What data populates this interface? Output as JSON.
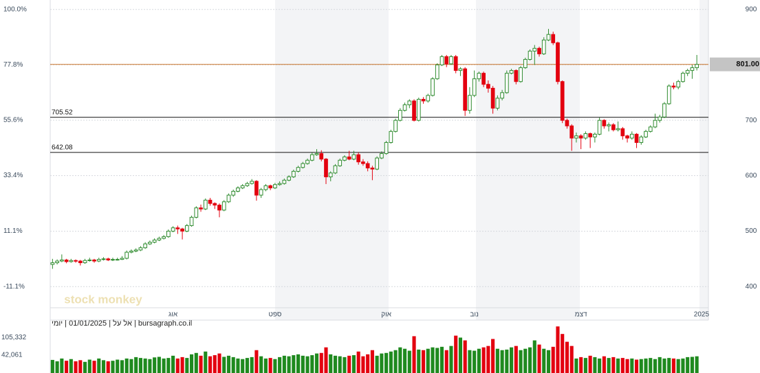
{
  "chart_data": {
    "type": "candlestick",
    "watermark": "stock monkey",
    "footer": "bursagraph.co.il | אל על | 01/01/2025 | יומי",
    "xlim": [
      -0.5,
      141.5
    ],
    "xticks": [
      {
        "value": 26,
        "label": "אוג"
      },
      {
        "value": 48,
        "label": "ספט"
      },
      {
        "value": 72,
        "label": "אוק"
      },
      {
        "value": 91,
        "label": "נוב"
      },
      {
        "value": 114,
        "label": "דצמ"
      },
      {
        "value": 140,
        "label": "2025"
      }
    ],
    "ylim": [
      363,
      911
    ],
    "yticks": [
      400,
      500,
      600,
      700,
      900
    ],
    "y2lim": [
      -19.3,
      102.4
    ],
    "y2ticks": [
      {
        "value": -11.1,
        "label": "-11.1%"
      },
      {
        "value": 11.1,
        "label": "11.1%"
      },
      {
        "value": 33.4,
        "label": "33.4%"
      },
      {
        "value": 55.6,
        "label": "55.6%"
      },
      {
        "value": 77.8,
        "label": "77.8%"
      },
      {
        "value": 100,
        "label": "100.0%"
      }
    ],
    "grid": true,
    "levels": [
      705.52,
      642.08
    ],
    "last_price": {
      "value": 801,
      "label": "801.00"
    },
    "up_color": "#2e8b2e",
    "down_color": "#e3000f",
    "ohlc": [
      [
        440,
        450,
        432,
        443
      ],
      [
        443,
        449,
        440,
        446
      ],
      [
        446,
        458,
        444,
        448
      ],
      [
        448,
        450,
        442,
        445
      ],
      [
        445,
        450,
        443,
        447
      ],
      [
        447,
        449,
        443,
        446
      ],
      [
        446,
        448,
        438,
        443
      ],
      [
        443,
        450,
        441,
        447
      ],
      [
        447,
        452,
        445,
        448
      ],
      [
        448,
        450,
        443,
        446
      ],
      [
        446,
        452,
        444,
        449
      ],
      [
        449,
        453,
        447,
        450
      ],
      [
        450,
        452,
        446,
        448
      ],
      [
        448,
        452,
        446,
        449
      ],
      [
        449,
        452,
        447,
        449
      ],
      [
        449,
        455,
        448,
        451
      ],
      [
        451,
        465,
        449,
        462
      ],
      [
        462,
        467,
        460,
        464
      ],
      [
        464,
        469,
        462,
        466
      ],
      [
        466,
        473,
        464,
        470
      ],
      [
        470,
        480,
        468,
        477
      ],
      [
        477,
        483,
        475,
        480
      ],
      [
        480,
        487,
        478,
        484
      ],
      [
        484,
        490,
        482,
        487
      ],
      [
        487,
        493,
        485,
        490
      ],
      [
        490,
        503,
        488,
        500
      ],
      [
        500,
        509,
        498,
        506
      ],
      [
        506,
        510,
        495,
        504
      ],
      [
        504,
        506,
        485,
        500
      ],
      [
        500,
        513,
        498,
        510
      ],
      [
        510,
        528,
        508,
        525
      ],
      [
        525,
        545,
        523,
        542
      ],
      [
        542,
        548,
        535,
        540
      ],
      [
        540,
        559,
        538,
        556
      ],
      [
        556,
        560,
        546,
        550
      ],
      [
        550,
        552,
        540,
        547
      ],
      [
        547,
        550,
        525,
        538
      ],
      [
        538,
        556,
        536,
        553
      ],
      [
        553,
        568,
        551,
        565
      ],
      [
        565,
        575,
        562,
        572
      ],
      [
        572,
        581,
        570,
        578
      ],
      [
        578,
        585,
        576,
        582
      ],
      [
        582,
        589,
        580,
        586
      ],
      [
        586,
        594,
        584,
        590
      ],
      [
        590,
        592,
        555,
        565
      ],
      [
        565,
        578,
        560,
        575
      ],
      [
        575,
        585,
        572,
        582
      ],
      [
        582,
        584,
        574,
        578
      ],
      [
        578,
        587,
        576,
        584
      ],
      [
        584,
        590,
        582,
        586
      ],
      [
        586,
        595,
        584,
        592
      ],
      [
        592,
        601,
        590,
        598
      ],
      [
        598,
        611,
        596,
        608
      ],
      [
        608,
        618,
        606,
        615
      ],
      [
        615,
        625,
        613,
        622
      ],
      [
        622,
        631,
        620,
        628
      ],
      [
        628,
        642,
        626,
        638
      ],
      [
        638,
        648,
        636,
        640
      ],
      [
        640,
        646,
        626,
        630
      ],
      [
        630,
        632,
        585,
        598
      ],
      [
        598,
        608,
        590,
        605
      ],
      [
        605,
        621,
        603,
        618
      ],
      [
        618,
        631,
        616,
        628
      ],
      [
        628,
        637,
        626,
        634
      ],
      [
        634,
        645,
        628,
        630
      ],
      [
        630,
        645,
        628,
        638
      ],
      [
        638,
        642,
        620,
        625
      ],
      [
        625,
        630,
        618,
        622
      ],
      [
        622,
        626,
        608,
        614
      ],
      [
        614,
        618,
        592,
        612
      ],
      [
        612,
        635,
        610,
        632
      ],
      [
        632,
        644,
        630,
        640
      ],
      [
        640,
        663,
        638,
        660
      ],
      [
        660,
        683,
        658,
        680
      ],
      [
        680,
        703,
        678,
        700
      ],
      [
        700,
        722,
        698,
        718
      ],
      [
        718,
        732,
        716,
        728
      ],
      [
        728,
        738,
        722,
        735
      ],
      [
        735,
        738,
        698,
        700
      ],
      [
        700,
        741,
        698,
        738
      ],
      [
        738,
        742,
        730,
        735
      ],
      [
        735,
        748,
        732,
        745
      ],
      [
        745,
        778,
        743,
        775
      ],
      [
        775,
        803,
        773,
        800
      ],
      [
        800,
        818,
        798,
        815
      ],
      [
        815,
        818,
        796,
        802
      ],
      [
        802,
        818,
        800,
        815
      ],
      [
        815,
        818,
        785,
        790
      ],
      [
        790,
        796,
        780,
        793
      ],
      [
        793,
        796,
        708,
        718
      ],
      [
        718,
        760,
        712,
        745
      ],
      [
        745,
        790,
        742,
        775
      ],
      [
        775,
        788,
        770,
        785
      ],
      [
        785,
        788,
        760,
        765
      ],
      [
        765,
        772,
        750,
        758
      ],
      [
        758,
        762,
        712,
        722
      ],
      [
        722,
        745,
        718,
        740
      ],
      [
        740,
        755,
        736,
        750
      ],
      [
        750,
        790,
        748,
        785
      ],
      [
        785,
        793,
        783,
        790
      ],
      [
        790,
        792,
        765,
        770
      ],
      [
        770,
        798,
        768,
        795
      ],
      [
        795,
        813,
        793,
        810
      ],
      [
        810,
        828,
        808,
        825
      ],
      [
        825,
        836,
        800,
        830
      ],
      [
        830,
        833,
        815,
        820
      ],
      [
        820,
        850,
        818,
        845
      ],
      [
        845,
        865,
        843,
        855
      ],
      [
        855,
        860,
        836,
        840
      ],
      [
        840,
        842,
        765,
        770
      ],
      [
        770,
        772,
        695,
        700
      ],
      [
        700,
        703,
        685,
        690
      ],
      [
        690,
        693,
        645,
        668
      ],
      [
        668,
        678,
        660,
        672
      ],
      [
        672,
        675,
        648,
        668
      ],
      [
        668,
        680,
        665,
        676
      ],
      [
        676,
        678,
        650,
        670
      ],
      [
        670,
        678,
        660,
        675
      ],
      [
        675,
        705,
        673,
        700
      ],
      [
        700,
        702,
        685,
        690
      ],
      [
        690,
        696,
        680,
        692
      ],
      [
        692,
        695,
        680,
        683
      ],
      [
        683,
        698,
        680,
        685
      ],
      [
        685,
        688,
        665,
        672
      ],
      [
        672,
        674,
        660,
        668
      ],
      [
        668,
        680,
        665,
        675
      ],
      [
        675,
        677,
        650,
        660
      ],
      [
        660,
        673,
        656,
        670
      ],
      [
        670,
        683,
        668,
        680
      ],
      [
        680,
        691,
        678,
        688
      ],
      [
        688,
        712,
        686,
        700
      ],
      [
        700,
        710,
        696,
        706
      ],
      [
        706,
        733,
        704,
        730
      ],
      [
        730,
        765,
        728,
        762
      ],
      [
        762,
        768,
        756,
        760
      ],
      [
        760,
        773,
        756,
        770
      ],
      [
        770,
        788,
        768,
        785
      ],
      [
        785,
        793,
        780,
        790
      ],
      [
        790,
        800,
        775,
        795
      ],
      [
        795,
        818,
        790,
        801
      ]
    ],
    "volume": {
      "ylim": [
        -17000,
        148000
      ],
      "yticks": [
        {
          "value": 105332,
          "label": "105,332"
        },
        {
          "value": 42061,
          "label": "42,061"
        }
      ],
      "values": [
        25000,
        20000,
        30000,
        22000,
        28000,
        20000,
        24000,
        18000,
        26000,
        22000,
        30000,
        24000,
        20000,
        22000,
        26000,
        24000,
        30000,
        28000,
        35000,
        32000,
        30000,
        28000,
        34000,
        36000,
        30000,
        32000,
        40000,
        30000,
        35000,
        32000,
        45000,
        50000,
        40000,
        55000,
        38000,
        42000,
        48000,
        36000,
        40000,
        35000,
        30000,
        28000,
        32000,
        35000,
        60000,
        38000,
        30000,
        32000,
        28000,
        35000,
        40000,
        38000,
        42000,
        45000,
        40000,
        38000,
        42000,
        48000,
        50000,
        70000,
        45000,
        40000,
        38000,
        35000,
        40000,
        42000,
        55000,
        38000,
        45000,
        60000,
        40000,
        48000,
        50000,
        55000,
        60000,
        70000,
        65000,
        58000,
        110000,
        62000,
        60000,
        65000,
        70000,
        68000,
        72000,
        60000,
        75000,
        112000,
        105000,
        95000,
        60000,
        58000,
        65000,
        70000,
        75000,
        100000,
        65000,
        60000,
        62000,
        70000,
        75000,
        60000,
        65000,
        70000,
        95000,
        80000,
        65000,
        60000,
        72000,
        145000,
        118000,
        90000,
        75000,
        30000,
        35000,
        32000,
        40000,
        35000,
        30000,
        38000,
        32000,
        35000,
        30000,
        32000,
        28000,
        30000,
        26000,
        28000,
        30000,
        32000,
        28000,
        35000,
        30000,
        32000,
        30000,
        28000,
        30000,
        35000,
        36000,
        38000
      ]
    }
  }
}
